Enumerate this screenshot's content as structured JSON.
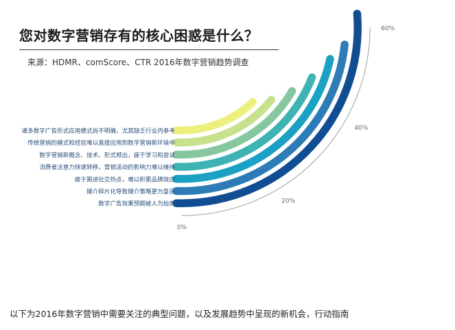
{
  "chart_data": {
    "type": "radial-bar",
    "title": "您对数字营销存有的核心困惑是什么？",
    "subtitle": "来源：HDMR、comScore、CTR 2016年数字营销趋势调查",
    "unit": "%",
    "axis_ticks": [
      "0%",
      "20%",
      "40%",
      "60%"
    ],
    "axis_tick_values": [
      0,
      20,
      40,
      60
    ],
    "axis_max": 60,
    "categories": [
      "诸多数字广告形式应用模式尚不明确，尤其缺乏行业内参考",
      "传统营销的模式和经验难以直接应用到数字营销新环境中",
      "数字营销新概念、技术、形式频出，疲于学习和尝试",
      "消费者注意力快速转移，营销活动的影响力难以维持",
      "疲于跟进社交热点，难以积累品牌效应",
      "媒介碎片化导致媒介策略更为复杂",
      "数字广告效果预期被人为抬高"
    ],
    "values": [
      29,
      34,
      40,
      46,
      52,
      56,
      63
    ],
    "colors": [
      "#eef07e",
      "#c7e18c",
      "#87c79f",
      "#3fb3b4",
      "#1aa1c3",
      "#2d7cb7",
      "#114d92"
    ]
  },
  "caption": "以下为2016年数字营销中需要关注的典型问题，以及发展趋势中呈现的新机会，行动指南"
}
